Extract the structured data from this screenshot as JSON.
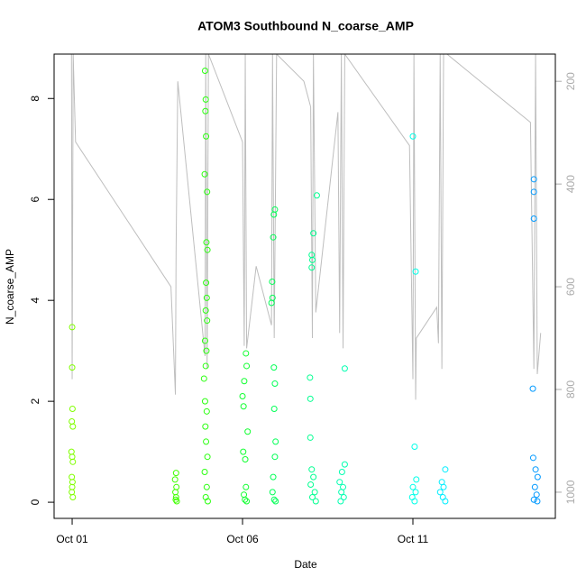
{
  "chart_data": {
    "type": "scatter",
    "title": "ATOM3 Southbound N_coarse_AMP",
    "x_label": "Date",
    "y_label": "N_coarse_AMP",
    "xlim": [
      0.47,
      15.18
    ],
    "xticks": [
      {
        "value": 1,
        "label": "Oct 01"
      },
      {
        "value": 6,
        "label": "Oct 06"
      },
      {
        "value": 11,
        "label": "Oct 11"
      }
    ],
    "ylim": [
      -0.32,
      8.88
    ],
    "yticks": [
      0,
      2,
      4,
      6,
      8
    ],
    "y2lim": [
      1051,
      147
    ],
    "y2ticks": [
      200,
      400,
      600,
      800,
      1000
    ],
    "series": [
      {
        "color": "#80ff00",
        "x": [
          1.0,
          1.0,
          1.01,
          0.99,
          1.02,
          0.98,
          1.0,
          1.02,
          0.99,
          1.01,
          1.0,
          0.99,
          1.02
        ],
        "values": [
          3.47,
          2.67,
          1.85,
          1.6,
          1.5,
          1.0,
          0.9,
          0.8,
          0.5,
          0.4,
          0.3,
          0.2,
          0.1
        ]
      },
      {
        "color": "#40ff00",
        "x": [
          4.05,
          4.02,
          4.06,
          4.03,
          4.05,
          4.04,
          4.07
        ],
        "values": [
          0.58,
          0.45,
          0.3,
          0.2,
          0.1,
          0.05,
          0.02
        ]
      },
      {
        "color": "#2bff10",
        "x": [
          4.9,
          4.92,
          4.91,
          4.93,
          4.89,
          4.96,
          4.94,
          4.97,
          4.93,
          4.95,
          4.92,
          4.96,
          4.9,
          4.94,
          4.92,
          4.87,
          4.9,
          4.95,
          4.91,
          4.93,
          4.97,
          4.89,
          4.95,
          4.92,
          4.98
        ],
        "values": [
          8.55,
          7.98,
          7.75,
          7.25,
          6.5,
          6.15,
          5.15,
          5.0,
          4.35,
          4.05,
          3.8,
          3.6,
          3.2,
          3.0,
          2.7,
          2.45,
          2.0,
          1.8,
          1.5,
          1.2,
          0.9,
          0.6,
          0.3,
          0.1,
          0.02
        ]
      },
      {
        "color": "#10ff30",
        "x": [
          6.1,
          6.12,
          6.05,
          6.0,
          6.03,
          6.15,
          6.02,
          6.08,
          6.1,
          6.04,
          6.07,
          6.12
        ],
        "values": [
          2.95,
          2.7,
          2.4,
          2.1,
          1.9,
          1.4,
          1.0,
          0.85,
          0.3,
          0.15,
          0.05,
          0.02
        ]
      },
      {
        "color": "#00ff55",
        "x": [
          6.95,
          6.92,
          6.9,
          6.87,
          6.88,
          6.85,
          6.92,
          6.95,
          6.93,
          6.97,
          6.95,
          6.9,
          6.88,
          6.93,
          6.97
        ],
        "values": [
          5.8,
          5.7,
          5.25,
          4.37,
          4.05,
          3.95,
          2.67,
          2.35,
          1.85,
          1.2,
          0.9,
          0.5,
          0.2,
          0.05,
          0.02
        ]
      },
      {
        "color": "#00ff90",
        "x": [
          8.18,
          8.08,
          8.03,
          8.05,
          8.03,
          7.98,
          7.99,
          7.99,
          8.03,
          8.08,
          8.0,
          8.12,
          8.05,
          8.15
        ],
        "values": [
          6.08,
          5.33,
          4.9,
          4.8,
          4.65,
          2.47,
          2.05,
          1.28,
          0.65,
          0.5,
          0.35,
          0.2,
          0.1,
          0.02
        ]
      },
      {
        "color": "#00ffb0",
        "x": [
          9.0,
          9.0,
          8.92,
          8.85,
          8.95,
          8.9,
          8.97,
          8.88
        ],
        "values": [
          2.65,
          0.75,
          0.6,
          0.4,
          0.3,
          0.2,
          0.1,
          0.02
        ]
      },
      {
        "color": "#00ffe8",
        "x": [
          11.0,
          11.08,
          11.05,
          11.1,
          11.0,
          11.08,
          10.98,
          11.05
        ],
        "values": [
          7.25,
          4.57,
          1.1,
          0.45,
          0.3,
          0.2,
          0.1,
          0.02
        ]
      },
      {
        "color": "#00eeff",
        "x": [
          11.95,
          11.85,
          11.9,
          11.8,
          11.88,
          11.95
        ],
        "values": [
          0.65,
          0.4,
          0.3,
          0.2,
          0.1,
          0.02
        ]
      },
      {
        "color": "#0099ff",
        "x": [
          14.55,
          14.55,
          14.55,
          14.52,
          14.53,
          14.6,
          14.66,
          14.58,
          14.63,
          14.55,
          14.65
        ],
        "values": [
          6.4,
          6.15,
          5.62,
          2.25,
          0.88,
          0.65,
          0.5,
          0.3,
          0.15,
          0.05,
          0.02
        ]
      },
      {
        "color": "#bebebe",
        "mode": "line",
        "axis": "y2",
        "x": [
          0.98,
          1.0,
          1.03,
          1.1,
          3.9,
          4.03,
          4.05,
          4.1,
          4.9,
          4.92,
          4.96,
          5.0,
          6.0,
          6.05,
          6.08,
          6.12,
          6.4,
          6.85,
          6.88,
          6.93,
          7.0,
          7.8,
          8.0,
          8.05,
          8.08,
          8.15,
          8.8,
          8.85,
          8.9,
          8.95,
          9.0,
          10.9,
          11.0,
          11.03,
          11.08,
          11.1,
          11.7,
          11.75,
          11.8,
          11.85,
          11.9,
          12.0,
          14.45,
          14.55,
          14.6,
          14.65,
          14.75
        ],
        "values": [
          147,
          780,
          147,
          318,
          600,
          810,
          530,
          200,
          735,
          147,
          760,
          147,
          318,
          715,
          147,
          720,
          560,
          675,
          147,
          700,
          147,
          200,
          250,
          700,
          147,
          650,
          260,
          690,
          147,
          720,
          147,
          325,
          780,
          147,
          820,
          700,
          640,
          710,
          147,
          760,
          147,
          147,
          280,
          760,
          147,
          770,
          690
        ]
      }
    ]
  }
}
